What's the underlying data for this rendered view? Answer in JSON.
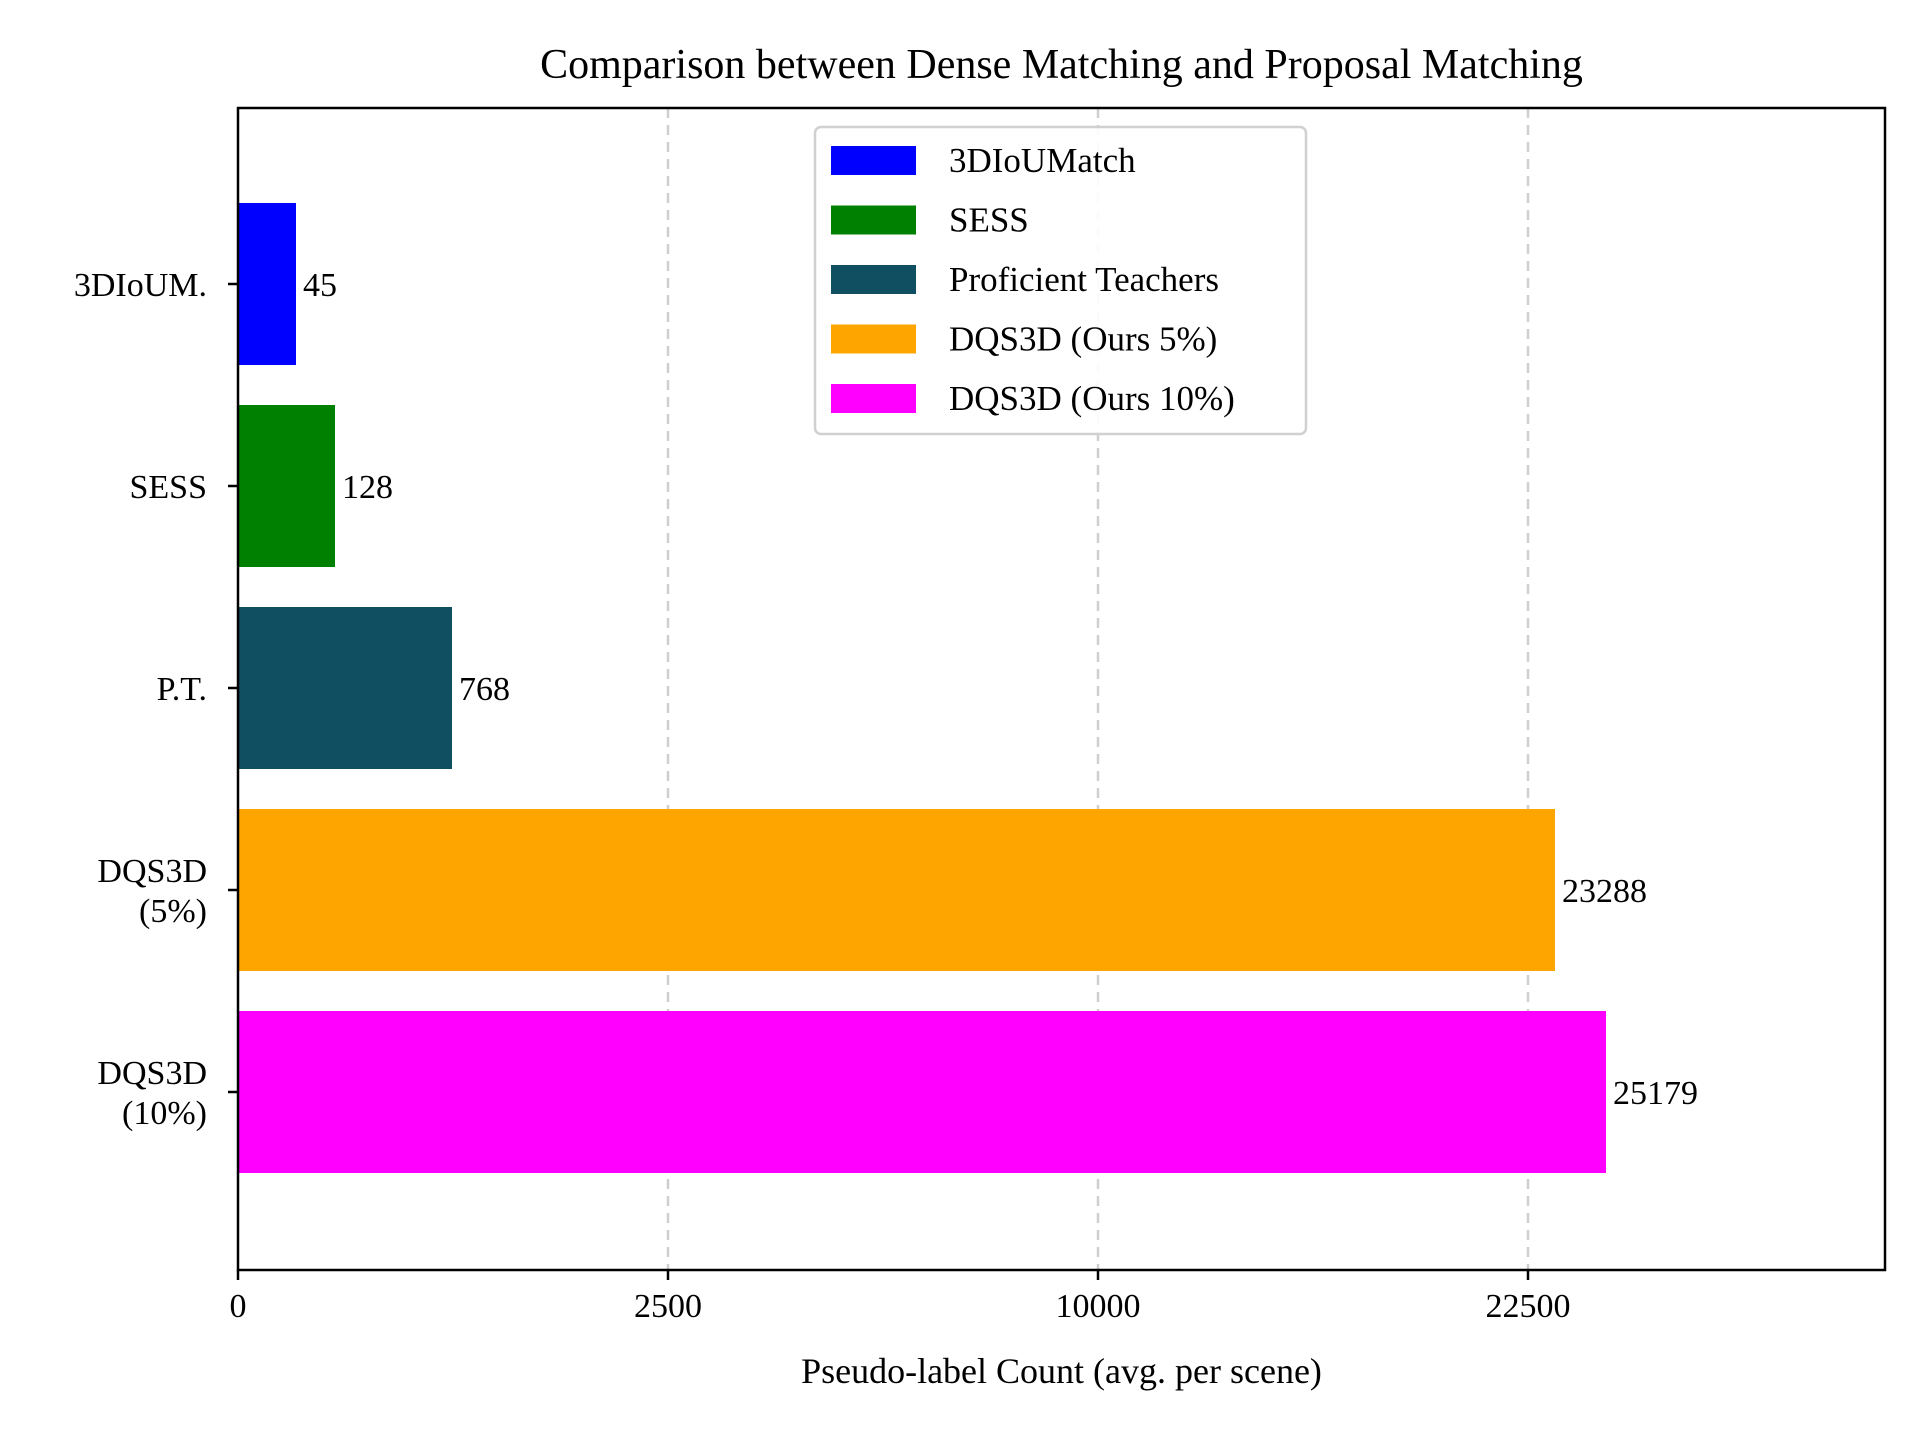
{
  "chart_data": {
    "type": "bar",
    "orientation": "horizontal",
    "title": "Comparison between Dense Matching and Proposal Matching",
    "xlabel": "Pseudo-label Count (avg. per scene)",
    "ylabel": "",
    "categories": [
      "3DIoUM.",
      "SESS",
      "P.T.",
      "DQS3D\n(5%)",
      "DQS3D\n(10%)"
    ],
    "series": [
      {
        "name": "3DIoUMatch",
        "category": "3DIoUM.",
        "value": 45,
        "label": "45",
        "color": "#0000ff"
      },
      {
        "name": "SESS",
        "category": "SESS",
        "value": 128,
        "label": "128",
        "color": "#008000"
      },
      {
        "name": "Proficient Teachers",
        "category": "P.T.",
        "value": 768,
        "label": "768",
        "color": "#104e62"
      },
      {
        "name": "DQS3D (Ours 5%)",
        "category": "DQS3D\n(5%)",
        "value": 23288,
        "label": "23288",
        "color": "#ffa500"
      },
      {
        "name": "DQS3D (Ours 10%)",
        "category": "DQS3D\n(10%)",
        "value": 25179,
        "label": "25179",
        "color": "#ff00ff"
      }
    ],
    "x_axis_scale": "non-linear (printed ticks 0, 2500, 10000, 22500 are evenly spaced)",
    "x_ticks": [
      0,
      2500,
      10000,
      22500
    ],
    "x_tick_labels": [
      "0",
      "2500",
      "10000",
      "22500"
    ],
    "grid": {
      "x": true,
      "y": false,
      "style": "dashed"
    },
    "legend": {
      "placement": "upper-center",
      "entries": [
        "3DIoUMatch",
        "SESS",
        "Proficient Teachers",
        "DQS3D (Ours 5%)",
        "DQS3D (Ours 10%)"
      ]
    }
  }
}
